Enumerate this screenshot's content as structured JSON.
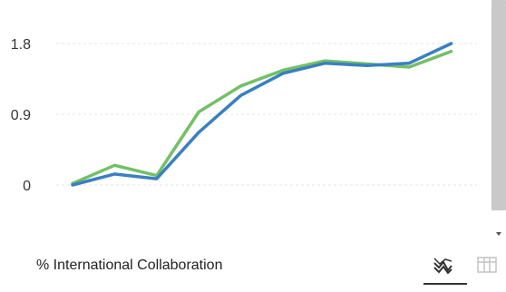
{
  "caption": "% International Collaboration",
  "colors": {
    "series_blue": "#3a7fc1",
    "series_green": "#73c066",
    "grid": "#e6e6e6",
    "scrollbar": "#c9c9c9"
  },
  "icons": {
    "line_chart": "line-chart-icon",
    "table": "table-icon",
    "scroll_down": "chevron-down-icon"
  },
  "view_toggle": {
    "active": "line-chart"
  },
  "chart_data": {
    "type": "line",
    "x": [
      0,
      1,
      2,
      3,
      4,
      5,
      6,
      7,
      8,
      9,
      10
    ],
    "series": [
      {
        "color": "#3a7fc1",
        "values": [
          0.0,
          0.14,
          0.08,
          0.67,
          1.14,
          1.42,
          1.55,
          1.52,
          1.55,
          1.8,
          null
        ]
      },
      {
        "color": "#73c066",
        "values": [
          0.02,
          0.25,
          0.12,
          0.93,
          1.26,
          1.46,
          1.58,
          1.54,
          1.5,
          1.7,
          null
        ]
      }
    ],
    "y_ticks": [
      "0",
      "0.9",
      "1.8"
    ],
    "y_tick_values": [
      0,
      0.9,
      1.8
    ],
    "ylim": [
      0,
      1.8
    ],
    "grid": true,
    "legend": "none"
  }
}
